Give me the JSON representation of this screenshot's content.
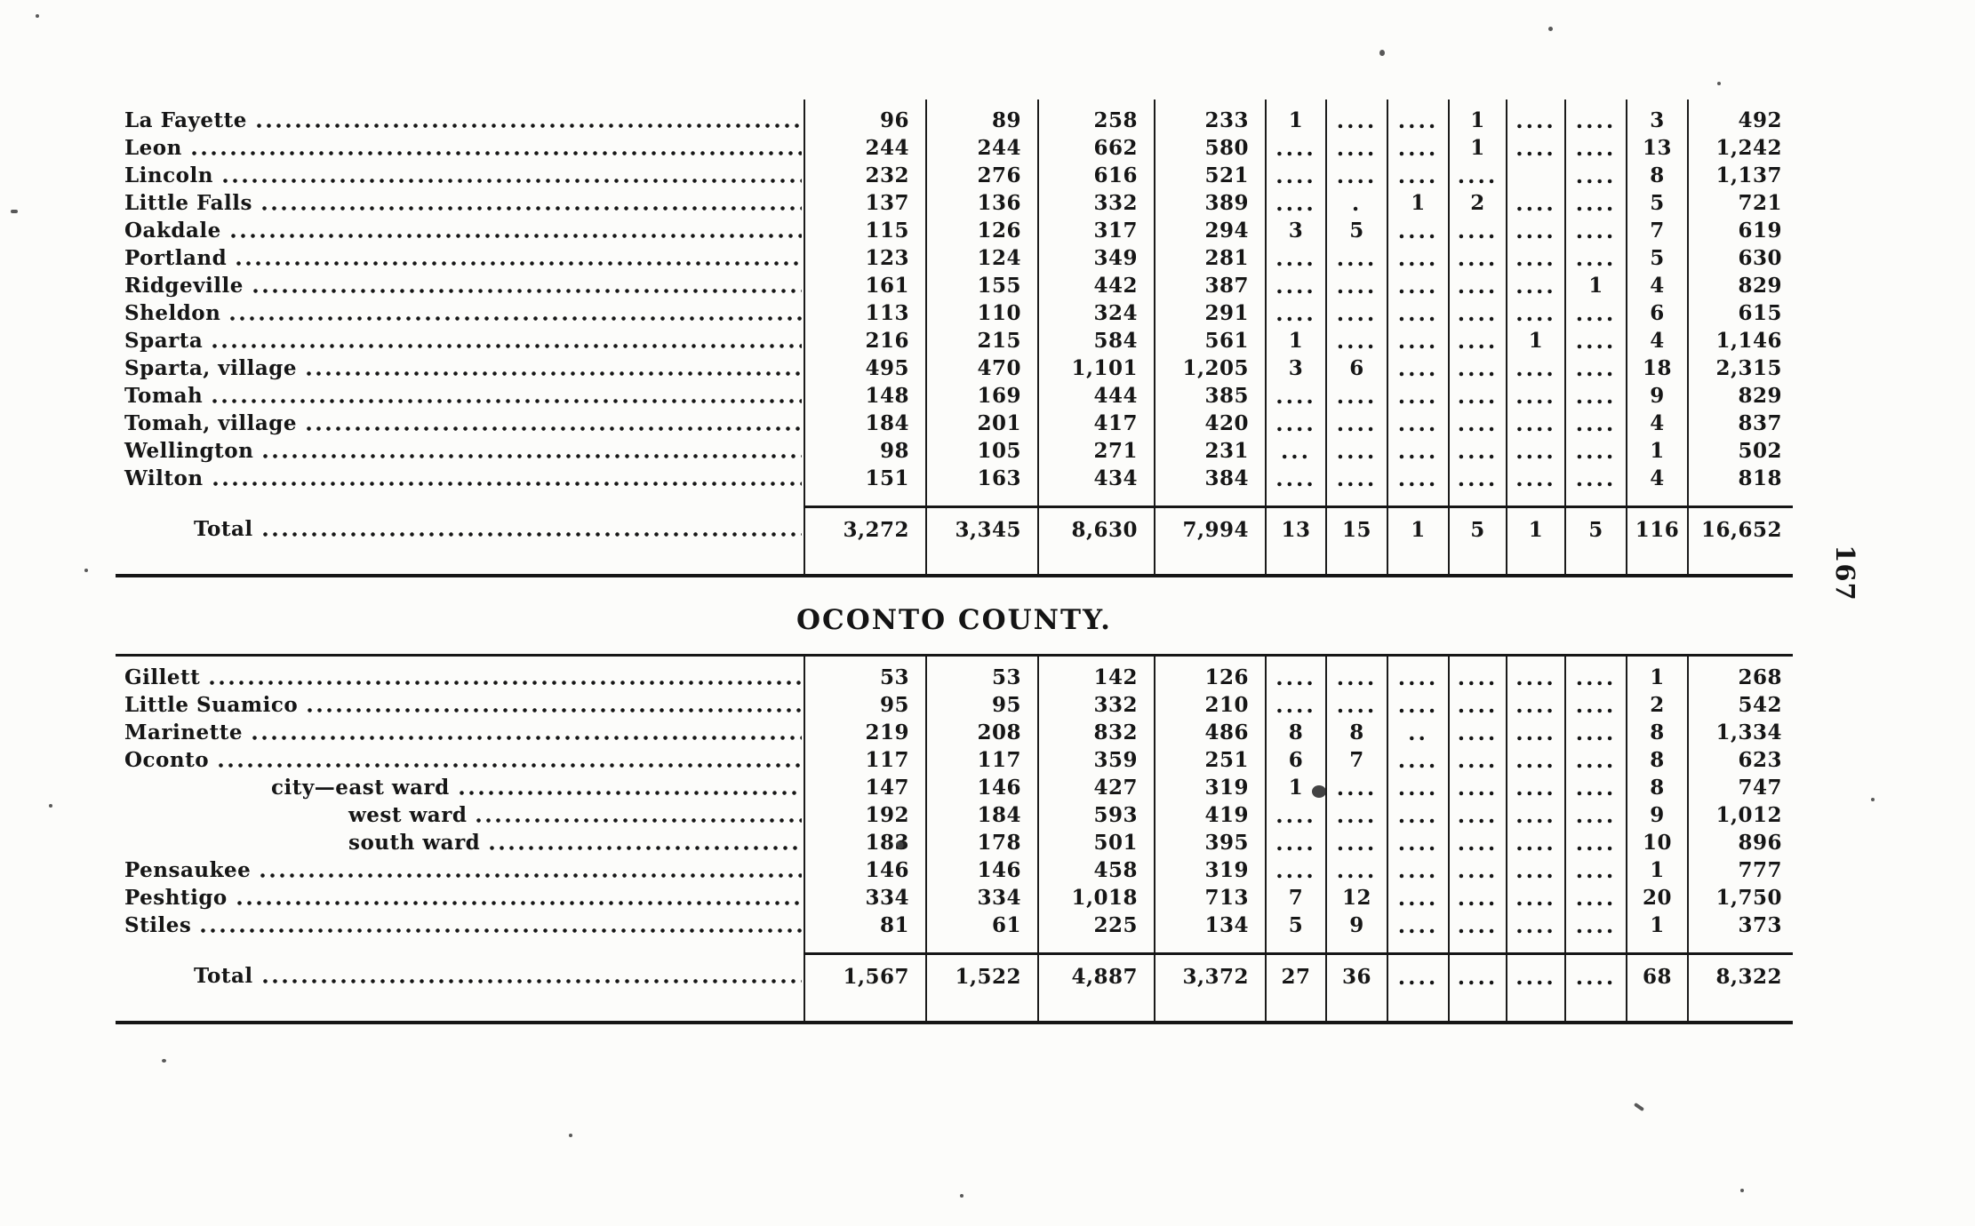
{
  "page": {
    "page_number": "167"
  },
  "heading": {
    "text": "OCONTO COUNTY."
  },
  "table1": {
    "rows": [
      {
        "label": "La Fayette",
        "indent": 0,
        "values": [
          "96",
          "89",
          "258",
          "233",
          "1",
          "....",
          "....",
          "1",
          "....",
          "....",
          "3",
          "492"
        ]
      },
      {
        "label": "Leon",
        "indent": 0,
        "values": [
          "244",
          "244",
          "662",
          "580",
          "....",
          "....",
          "....",
          "1",
          "....",
          "....",
          "13",
          "1,242"
        ]
      },
      {
        "label": "Lincoln",
        "indent": 0,
        "values": [
          "232",
          "276",
          "616",
          "521",
          "....",
          "....",
          "....",
          "....",
          "",
          "....",
          "8",
          "1,137"
        ]
      },
      {
        "label": "Little Falls",
        "indent": 0,
        "values": [
          "137",
          "136",
          "332",
          "389",
          "....",
          ".",
          "1",
          "2",
          "....",
          "....",
          "5",
          "721"
        ]
      },
      {
        "label": "Oakdale",
        "indent": 0,
        "values": [
          "115",
          "126",
          "317",
          "294",
          "3",
          "5",
          "....",
          "....",
          "....",
          "....",
          "7",
          "619"
        ]
      },
      {
        "label": "Portland",
        "indent": 0,
        "values": [
          "123",
          "124",
          "349",
          "281",
          "....",
          "....",
          "....",
          "....",
          "....",
          "....",
          "5",
          "630"
        ]
      },
      {
        "label": "Ridgeville",
        "indent": 0,
        "values": [
          "161",
          "155",
          "442",
          "387",
          "....",
          "....",
          "....",
          "....",
          "....",
          "1",
          "4",
          "829"
        ]
      },
      {
        "label": "Sheldon",
        "indent": 0,
        "values": [
          "113",
          "110",
          "324",
          "291",
          "....",
          "....",
          "....",
          "....",
          "....",
          "....",
          "6",
          "615"
        ]
      },
      {
        "label": "Sparta",
        "indent": 0,
        "values": [
          "216",
          "215",
          "584",
          "561",
          "1",
          "....",
          "....",
          "....",
          "1",
          "....",
          "4",
          "1,146"
        ]
      },
      {
        "label": "Sparta, village",
        "indent": 0,
        "values": [
          "495",
          "470",
          "1,101",
          "1,205",
          "3",
          "6",
          "....",
          "....",
          "....",
          "....",
          "18",
          "2,315"
        ]
      },
      {
        "label": "Tomah",
        "indent": 0,
        "values": [
          "148",
          "169",
          "444",
          "385",
          "....",
          "....",
          "....",
          "....",
          "....",
          "....",
          "9",
          "829"
        ]
      },
      {
        "label": "Tomah, village",
        "indent": 0,
        "values": [
          "184",
          "201",
          "417",
          "420",
          "....",
          "....",
          "....",
          "....",
          "....",
          "....",
          "4",
          "837"
        ]
      },
      {
        "label": "Wellington",
        "indent": 0,
        "values": [
          "98",
          "105",
          "271",
          "231",
          "...",
          "....",
          "....",
          "....",
          "....",
          "....",
          "1",
          "502"
        ]
      },
      {
        "label": "Wilton",
        "indent": 0,
        "values": [
          "151",
          "163",
          "434",
          "384",
          "....",
          "....",
          "....",
          "....",
          "....",
          "....",
          "4",
          "818"
        ]
      }
    ],
    "total": {
      "label": "Total",
      "values": [
        "3,272",
        "3,345",
        "8,630",
        "7,994",
        "13",
        "15",
        "1",
        "5",
        "1",
        "5",
        "116",
        "16,652"
      ]
    }
  },
  "table2": {
    "rows": [
      {
        "label": "Gillett",
        "indent": 0,
        "values": [
          "53",
          "53",
          "142",
          "126",
          "....",
          "....",
          "....",
          "....",
          "....",
          "....",
          "1",
          "268"
        ]
      },
      {
        "label": "Little Suamico",
        "indent": 0,
        "values": [
          "95",
          "95",
          "332",
          "210",
          "....",
          "....",
          "....",
          "....",
          "....",
          "....",
          "2",
          "542"
        ]
      },
      {
        "label": "Marinette",
        "indent": 0,
        "values": [
          "219",
          "208",
          "832",
          "486",
          "8",
          "8",
          "..",
          "....",
          "....",
          "....",
          "8",
          "1,334"
        ]
      },
      {
        "label": "Oconto",
        "indent": 0,
        "values": [
          "117",
          "117",
          "359",
          "251",
          "6",
          "7",
          "....",
          "....",
          "....",
          "....",
          "8",
          "623"
        ]
      },
      {
        "label": "city—east ward",
        "indent": 1,
        "values": [
          "147",
          "146",
          "427",
          "319",
          "1",
          "....",
          "....",
          "....",
          "....",
          "....",
          "8",
          "747"
        ]
      },
      {
        "label": "west ward",
        "indent": 2,
        "values": [
          "192",
          "184",
          "593",
          "419",
          "....",
          "....",
          "....",
          "....",
          "....",
          "....",
          "9",
          "1,012"
        ]
      },
      {
        "label": "south ward",
        "indent": 2,
        "values": [
          "183",
          "178",
          "501",
          "395",
          "....",
          "....",
          "....",
          "....",
          "....",
          "....",
          "10",
          "896"
        ]
      },
      {
        "label": "Pensaukee",
        "indent": 0,
        "values": [
          "146",
          "146",
          "458",
          "319",
          "....",
          "....",
          "....",
          "....",
          "....",
          "....",
          "1",
          "777"
        ]
      },
      {
        "label": "Peshtigo",
        "indent": 0,
        "values": [
          "334",
          "334",
          "1,018",
          "713",
          "7",
          "12",
          "....",
          "....",
          "....",
          "....",
          "20",
          "1,750"
        ]
      },
      {
        "label": "Stiles",
        "indent": 0,
        "values": [
          "81",
          "61",
          "225",
          "134",
          "5",
          "9",
          "....",
          "....",
          "....",
          "....",
          "1",
          "373"
        ]
      }
    ],
    "total": {
      "label": "Total",
      "values": [
        "1,567",
        "1,522",
        "4,887",
        "3,372",
        "27",
        "36",
        "....",
        "....",
        "....",
        "....",
        "68",
        "8,322"
      ]
    }
  }
}
